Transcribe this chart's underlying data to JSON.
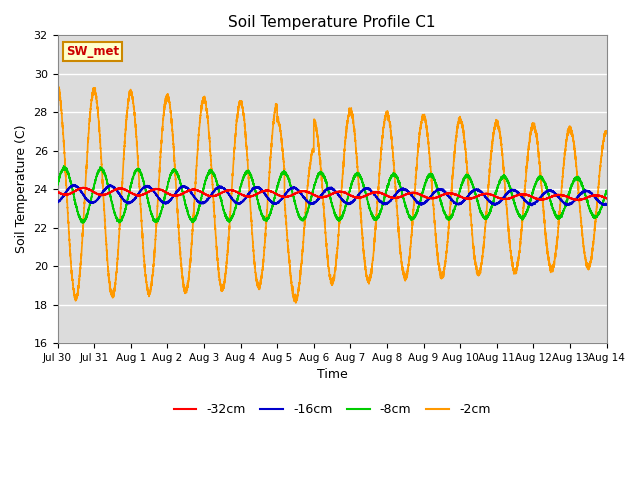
{
  "title": "Soil Temperature Profile C1",
  "xlabel": "Time",
  "ylabel": "Soil Temperature (C)",
  "ylim": [
    16,
    32
  ],
  "yticks": [
    16,
    18,
    20,
    22,
    24,
    26,
    28,
    30,
    32
  ],
  "bg_color": "#dcdcdc",
  "fig_color": "#ffffff",
  "annotation_text": "SW_met",
  "annotation_bg": "#ffffcc",
  "annotation_border": "#cc8800",
  "annotation_text_color": "#cc0000",
  "legend_labels": [
    "-32cm",
    "-16cm",
    "-8cm",
    "-2cm"
  ],
  "line_colors": [
    "#ff0000",
    "#0000cc",
    "#00cc00",
    "#ff9900"
  ],
  "x_tick_labels": [
    "Jul 30",
    "Jul 31",
    "Aug 1",
    "Aug 2",
    "Aug 3",
    "Aug 4",
    "Aug 5",
    "Aug 6",
    "Aug 7",
    "Aug 8",
    "Aug 9",
    "Aug 10",
    "Aug 11",
    "Aug 12",
    "Aug 13",
    "Aug 14"
  ],
  "x_tick_positions": [
    0,
    1,
    2,
    3,
    4,
    5,
    6,
    7,
    8,
    9,
    10,
    11,
    12,
    13,
    14,
    15
  ]
}
